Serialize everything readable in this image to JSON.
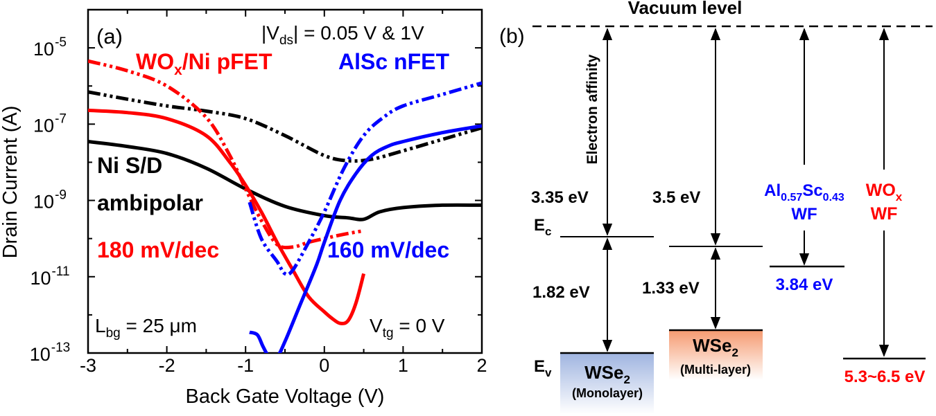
{
  "panel_a": {
    "label": "(a)",
    "vds_prefix": "|V",
    "vds_sub": "ds",
    "vds_suffix": "| = 0.05 V & 1V",
    "wox_main": "WO",
    "wox_sub": "x",
    "wox_rest": "/Ni pFET",
    "alsc_label": "AlSc nFET",
    "ni_line1": "Ni S/D",
    "ni_line2": "ambipolar",
    "ss_red": "180 mV/dec",
    "ss_blue": "160 mV/dec",
    "lbg_prefix": "L",
    "lbg_sub": "bg",
    "lbg_suffix": " = 25 μm",
    "vtg_prefix": "V",
    "vtg_sub": "tg",
    "vtg_suffix": " = 0 V",
    "xlabel": "Back Gate Voltage (V)",
    "ylabel": "Drain Current (A)"
  },
  "chart_data": {
    "type": "line",
    "xlabel": "Back Gate Voltage (V)",
    "ylabel": "Drain Current (A)",
    "xlim": [
      -3,
      2
    ],
    "ylim": [
      1e-13,
      0.0001
    ],
    "yscale": "log",
    "xticks": [
      "-3",
      "-2",
      "-1",
      "0",
      "1",
      "2"
    ],
    "yticks": [
      {
        "base": "10",
        "exp": "-5",
        "value": 1e-05
      },
      {
        "base": "10",
        "exp": "-7",
        "value": 1e-07
      },
      {
        "base": "10",
        "exp": "-9",
        "value": 1e-09
      },
      {
        "base": "10",
        "exp": "-11",
        "value": 1e-11
      },
      {
        "base": "10",
        "exp": "-13",
        "value": 1e-13
      }
    ],
    "series": [
      {
        "key": "ni_1v",
        "color": "#000000",
        "dash": "dashdotdot",
        "points": [
          [
            -3,
            7e-07
          ],
          [
            -2.5,
            4.5e-07
          ],
          [
            -2,
            3e-07
          ],
          [
            -1.5,
            2.2e-07
          ],
          [
            -1,
            1.4e-07
          ],
          [
            -0.5,
            5e-08
          ],
          [
            0,
            1.5e-08
          ],
          [
            0.3,
            1.1e-08
          ],
          [
            0.6,
            1.2e-08
          ],
          [
            1,
            2e-08
          ],
          [
            1.5,
            4e-08
          ],
          [
            2,
            8e-08
          ]
        ]
      },
      {
        "key": "ni_005v",
        "color": "#000000",
        "dash": "solid",
        "points": [
          [
            -3,
            3.5e-08
          ],
          [
            -2.5,
            2.6e-08
          ],
          [
            -2,
            1.7e-08
          ],
          [
            -1.5,
            7e-09
          ],
          [
            -1,
            2e-09
          ],
          [
            -0.5,
            7e-10
          ],
          [
            0,
            4e-10
          ],
          [
            0.3,
            3.5e-10
          ],
          [
            0.5,
            3.2e-10
          ],
          [
            0.7,
            5e-10
          ],
          [
            1,
            6.5e-10
          ],
          [
            1.5,
            7.5e-10
          ],
          [
            2,
            7.5e-10
          ]
        ]
      },
      {
        "key": "wox_1v",
        "color": "#ff0000",
        "dash": "dashdotdot",
        "points": [
          [
            -3,
            4.5e-06
          ],
          [
            -2.5,
            2.5e-06
          ],
          [
            -2,
            1e-06
          ],
          [
            -1.5,
            1.5e-07
          ],
          [
            -1.2,
            1.5e-08
          ],
          [
            -1,
            2e-09
          ],
          [
            -0.8,
            3e-10
          ],
          [
            -0.6,
            7e-11
          ],
          [
            -0.4,
            6e-11
          ],
          [
            -0.2,
            8e-11
          ],
          [
            0,
            1e-10
          ],
          [
            0.25,
            1.3e-10
          ],
          [
            0.5,
            1.6e-10
          ]
        ]
      },
      {
        "key": "wox_005v",
        "color": "#ff0000",
        "dash": "solid",
        "points": [
          [
            -3,
            2.3e-07
          ],
          [
            -2.5,
            2e-07
          ],
          [
            -2,
            1.4e-07
          ],
          [
            -1.5,
            5e-08
          ],
          [
            -1.2,
            1e-08
          ],
          [
            -1,
            2.5e-09
          ],
          [
            -0.8,
            5e-10
          ],
          [
            -0.6,
            8e-11
          ],
          [
            -0.4,
            1.5e-11
          ],
          [
            -0.2,
            3e-12
          ],
          [
            0,
            1.2e-12
          ],
          [
            0.1,
            8e-13
          ],
          [
            0.2,
            6e-13
          ],
          [
            0.3,
            7e-13
          ],
          [
            0.4,
            2e-12
          ],
          [
            0.5,
            1.2e-11
          ]
        ]
      },
      {
        "key": "alsc_1v",
        "color": "#0000ff",
        "dash": "dashdotdot",
        "points": [
          [
            -0.95,
            9e-10
          ],
          [
            -0.8,
            1e-10
          ],
          [
            -0.6,
            2.5e-11
          ],
          [
            -0.5,
            1.2e-11
          ],
          [
            -0.4,
            1.5e-11
          ],
          [
            -0.2,
            8e-11
          ],
          [
            0,
            5e-10
          ],
          [
            0.25,
            7e-09
          ],
          [
            0.5,
            5e-08
          ],
          [
            0.75,
            1.5e-07
          ],
          [
            1,
            3e-07
          ],
          [
            1.5,
            6e-07
          ],
          [
            2,
            1.2e-06
          ]
        ]
      },
      {
        "key": "alsc_005v",
        "color": "#0000ff",
        "dash": "solid",
        "points": [
          [
            -0.95,
            3.5e-13
          ],
          [
            -0.85,
            3e-13
          ],
          [
            -0.78,
            1.5e-13
          ],
          [
            -0.7,
            8e-14
          ],
          [
            -0.6,
            8e-14
          ],
          [
            -0.5,
            2e-13
          ],
          [
            -0.3,
            2e-12
          ],
          [
            -0.1,
            2e-11
          ],
          [
            0,
            8e-11
          ],
          [
            0.2,
            1e-09
          ],
          [
            0.4,
            5e-09
          ],
          [
            0.6,
            1.5e-08
          ],
          [
            0.8,
            2.6e-08
          ],
          [
            1,
            3.5e-08
          ],
          [
            1.5,
            6e-08
          ],
          [
            2,
            9e-08
          ]
        ]
      }
    ]
  },
  "panel_b": {
    "label": "(b)",
    "vacuum": "Vacuum level",
    "electron_affinity": "Electron affinity",
    "ea_mono": "3.35 eV",
    "ea_multi": "3.5 eV",
    "gap_mono": "1.82 eV",
    "gap_multi": "1.33 eV",
    "ec": "E",
    "ec_sub": "c",
    "ev": "E",
    "ev_sub": "v",
    "mono_name": "WSe",
    "mono_sub": "2",
    "mono_type": "(Monolayer)",
    "multi_name": "WSe",
    "multi_sub": "2",
    "multi_type": "(Multi-layer)",
    "alsc_al": "Al",
    "alsc_al_sub": "0.57",
    "alsc_sc": "Sc",
    "alsc_sc_sub": "0.43",
    "alsc_wf": "WF",
    "alsc_value": "3.84 eV",
    "wox_name": "WO",
    "wox_sub": "x",
    "wox_wf": "WF",
    "wox_value": "5.3~6.5 eV",
    "colors": {
      "blue": "#0000ff",
      "red": "#ff0000",
      "mono_box": "#a9bde4",
      "multi_box": "#f6a57e"
    }
  }
}
